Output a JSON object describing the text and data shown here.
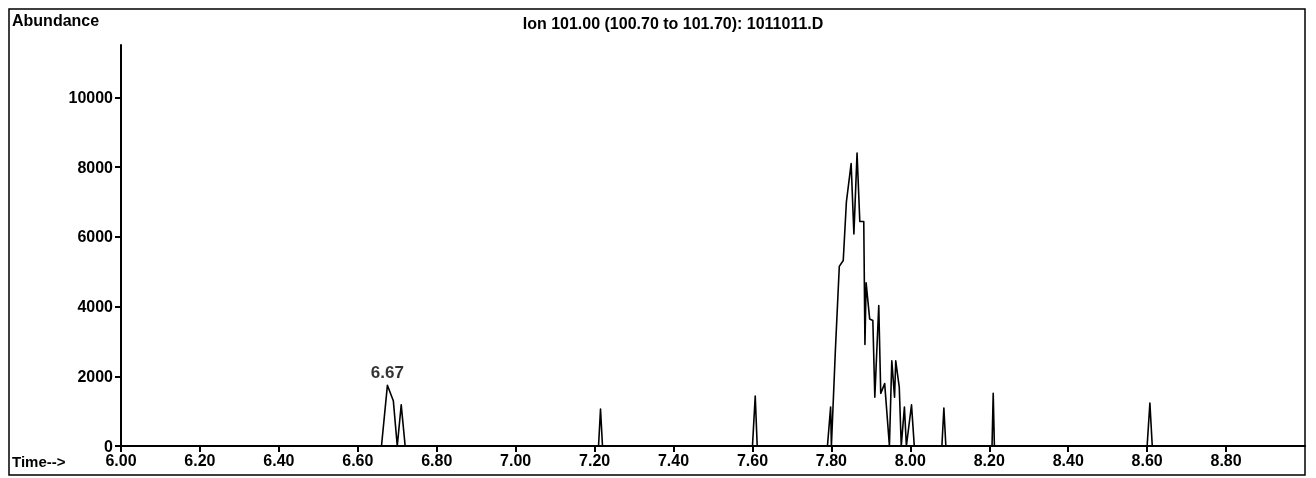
{
  "chart_data": {
    "type": "line",
    "title": "Ion 101.00 (100.70 to 101.70): 1011011.D",
    "xlabel": "Time-->",
    "ylabel": "Abundance",
    "xlim": [
      6.0,
      9.0
    ],
    "xticks": [
      {
        "value": 6.0,
        "label": "6.00"
      },
      {
        "value": 6.2,
        "label": "6.20"
      },
      {
        "value": 6.4,
        "label": "6.40"
      },
      {
        "value": 6.6,
        "label": "6.60"
      },
      {
        "value": 6.8,
        "label": "6.80"
      },
      {
        "value": 7.0,
        "label": "7.00"
      },
      {
        "value": 7.2,
        "label": "7.20"
      },
      {
        "value": 7.4,
        "label": "7.40"
      },
      {
        "value": 7.6,
        "label": "7.60"
      },
      {
        "value": 7.8,
        "label": "7.80"
      },
      {
        "value": 8.0,
        "label": "8.00"
      },
      {
        "value": 8.2,
        "label": "8.20"
      },
      {
        "value": 8.4,
        "label": "8.40"
      },
      {
        "value": 8.6,
        "label": "8.60"
      },
      {
        "value": 8.8,
        "label": "8.80"
      }
    ],
    "ylim": [
      0,
      11500
    ],
    "yticks": [
      0,
      2000,
      4000,
      6000,
      8000,
      10000
    ],
    "marker": "none",
    "line_style": "solid",
    "annotations": [
      {
        "text": "6.67",
        "x": 6.675,
        "y": 1740
      }
    ],
    "series": [
      {
        "color": "#000000",
        "x": [
          6.0,
          6.66,
          6.675,
          6.69,
          6.7,
          6.71,
          6.72,
          7.21,
          7.215,
          7.22,
          7.6,
          7.607,
          7.612,
          7.79,
          7.798,
          7.8,
          7.81,
          7.82,
          7.83,
          7.838,
          7.85,
          7.857,
          7.865,
          7.872,
          7.882,
          7.885,
          7.888,
          7.897,
          7.905,
          7.91,
          7.92,
          7.925,
          7.935,
          7.947,
          7.953,
          7.96,
          7.963,
          7.972,
          7.977,
          7.985,
          7.99,
          8.003,
          8.01,
          8.08,
          8.085,
          8.09,
          8.207,
          8.21,
          8.213,
          8.6,
          8.607,
          8.613,
          9.0
        ],
        "values": [
          0,
          0,
          1740,
          1300,
          0,
          1180,
          0,
          0,
          1060,
          0,
          0,
          1430,
          0,
          0,
          1120,
          0,
          2720,
          5150,
          5320,
          7000,
          8100,
          6080,
          8400,
          6440,
          6440,
          2910,
          4680,
          3640,
          3600,
          1400,
          4030,
          1510,
          1790,
          0,
          2440,
          1400,
          2440,
          1680,
          0,
          1120,
          0,
          1180,
          0,
          0,
          1090,
          0,
          0,
          1510,
          0,
          0,
          1230,
          0,
          0
        ]
      }
    ]
  }
}
